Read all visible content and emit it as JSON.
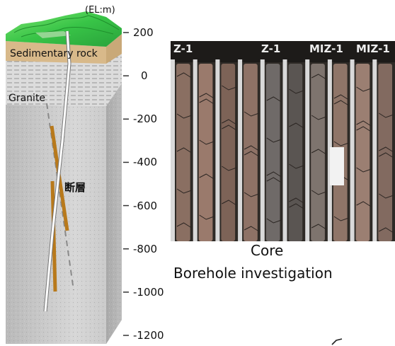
{
  "axis": {
    "unit": "(EL:m)",
    "ticks": [
      200,
      0,
      -200,
      -400,
      -600,
      -800,
      -1000,
      -1200
    ]
  },
  "layers": {
    "sedimentary": "Sedimentary rock",
    "granite": "Granite"
  },
  "fault": "断層",
  "photo": {
    "core_tags": [
      "Z-1",
      "Z-1",
      "MIZ-1",
      "MIZ-1"
    ],
    "caption": "Core"
  },
  "caption": "Borehole investigation",
  "colors": {
    "terrain": "#3dd24c",
    "sediment": "#c9a978",
    "granite": "#c7c7c7",
    "fault": "#b8791b",
    "core_bg": "#2e2a26"
  }
}
